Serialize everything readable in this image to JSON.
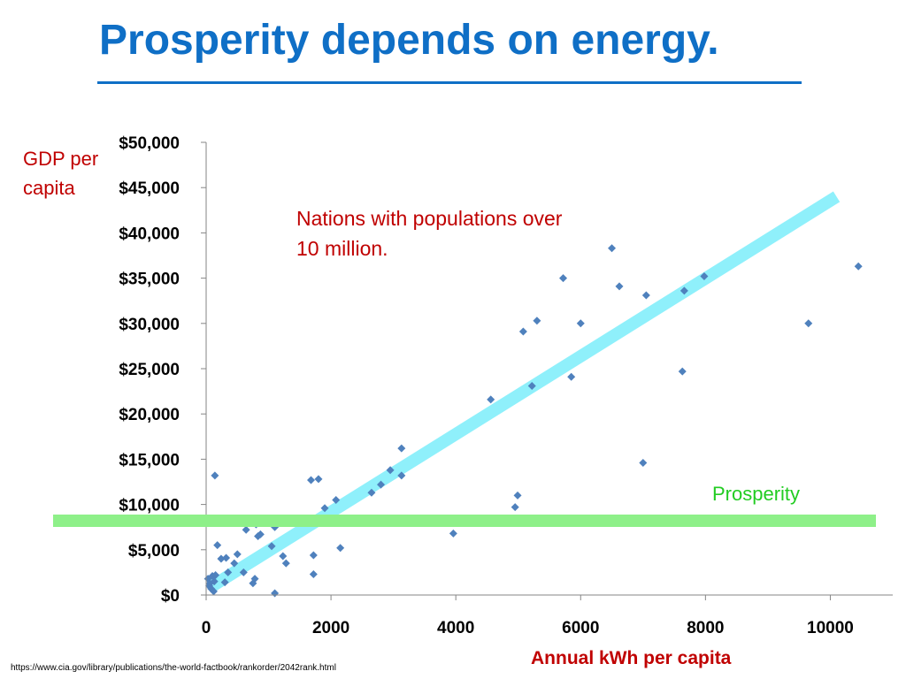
{
  "slide": {
    "title": "Prosperity depends on energy.",
    "source": "https://www.cia.gov/library/publications/the-world-factbook/rankorder/2042rank.html"
  },
  "colors": {
    "title": "#0f6fc6",
    "labels": "#c00000",
    "points": "#4f81bd",
    "trend": "#8ff0fb",
    "prosperity_line": "#8ef089",
    "prosperity_label": "#22cc22"
  },
  "chart_data": {
    "type": "scatter",
    "xlabel": "Annual kWh per capita",
    "ylabel": "GDP per capita",
    "annotation": "Nations with populations over 10 million.",
    "xlim": [
      0,
      11000
    ],
    "ylim": [
      0,
      50000
    ],
    "x_ticks": [
      0,
      2000,
      4000,
      6000,
      8000,
      10000
    ],
    "x_tick_labels": [
      "0",
      "2000",
      "4000",
      "6000",
      "8000",
      "10000"
    ],
    "y_ticks": [
      0,
      5000,
      10000,
      15000,
      20000,
      25000,
      30000,
      35000,
      40000,
      45000,
      50000
    ],
    "y_tick_labels": [
      "$0",
      "$5,000",
      "$10,000",
      "$15,000",
      "$20,000",
      "$25,000",
      "$30,000",
      "$35,000",
      "$40,000",
      "$45,000",
      "$50,000"
    ],
    "grid": false,
    "series": [
      {
        "points": [
          [
            30,
            1800
          ],
          [
            50,
            1000
          ],
          [
            60,
            1300
          ],
          [
            80,
            700
          ],
          [
            100,
            2100
          ],
          [
            120,
            400
          ],
          [
            150,
            2200
          ],
          [
            130,
            1500
          ],
          [
            140,
            13200
          ],
          [
            180,
            5500
          ],
          [
            240,
            4000
          ],
          [
            300,
            1400
          ],
          [
            320,
            4100
          ],
          [
            350,
            2500
          ],
          [
            450,
            3500
          ],
          [
            500,
            4500
          ],
          [
            600,
            2500
          ],
          [
            640,
            7200
          ],
          [
            750,
            1300
          ],
          [
            780,
            1800
          ],
          [
            800,
            7800
          ],
          [
            830,
            6500
          ],
          [
            870,
            6700
          ],
          [
            1050,
            5400
          ],
          [
            1100,
            7500
          ],
          [
            1100,
            200
          ],
          [
            1230,
            4300
          ],
          [
            1280,
            3500
          ],
          [
            1680,
            12700
          ],
          [
            1720,
            4400
          ],
          [
            1720,
            2300
          ],
          [
            1800,
            12800
          ],
          [
            1820,
            8000
          ],
          [
            1900,
            9600
          ],
          [
            2080,
            10500
          ],
          [
            2150,
            5200
          ],
          [
            2650,
            11300
          ],
          [
            2800,
            12200
          ],
          [
            2950,
            13800
          ],
          [
            3130,
            16200
          ],
          [
            3130,
            13200
          ],
          [
            3960,
            6800
          ],
          [
            4560,
            21600
          ],
          [
            4950,
            9700
          ],
          [
            4990,
            11000
          ],
          [
            5080,
            29100
          ],
          [
            5220,
            23100
          ],
          [
            5300,
            30300
          ],
          [
            5720,
            35000
          ],
          [
            5850,
            24100
          ],
          [
            6000,
            30000
          ],
          [
            6500,
            38300
          ],
          [
            6620,
            34100
          ],
          [
            7000,
            14600
          ],
          [
            7050,
            33100
          ],
          [
            7630,
            24700
          ],
          [
            7660,
            33600
          ],
          [
            7980,
            35200
          ],
          [
            9650,
            30000
          ],
          [
            10450,
            36300
          ]
        ]
      }
    ],
    "trend_line": {
      "x": [
        100,
        10100
      ],
      "y": [
        1000,
        44000
      ]
    },
    "prosperity_threshold": {
      "y": 8200,
      "label": "Prosperity"
    }
  }
}
